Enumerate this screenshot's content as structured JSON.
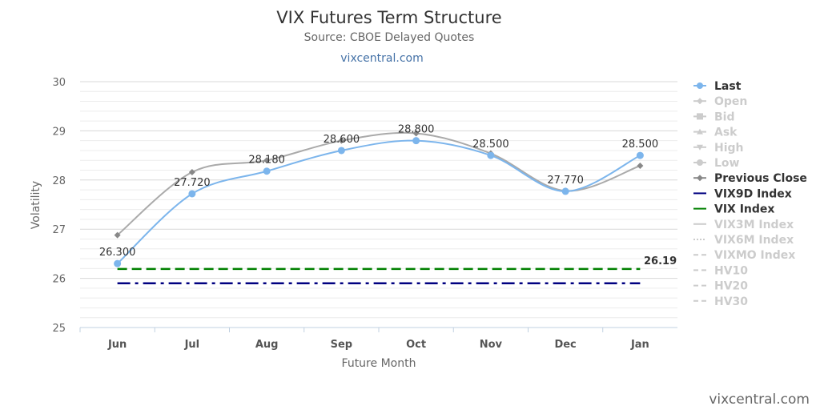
{
  "chart_data": {
    "type": "line",
    "title": "VIX Futures Term Structure",
    "subtitle": "Source: CBOE Delayed Quotes",
    "link": "vixcentral.com",
    "watermark": "vixcentral.com",
    "xlabel": "Future Month",
    "ylabel": "Volatility",
    "ylim": [
      25,
      30
    ],
    "yticks": [
      "25",
      "26",
      "27",
      "28",
      "29",
      "30"
    ],
    "categories": [
      "Jun",
      "Jul",
      "Aug",
      "Sep",
      "Oct",
      "Nov",
      "Dec",
      "Jan"
    ],
    "grid": true,
    "legend_position": "right",
    "series": [
      {
        "name": "Last",
        "color": "#7cb5ec",
        "values": [
          26.3,
          27.72,
          28.18,
          28.6,
          28.8,
          28.5,
          27.77,
          28.5
        ],
        "labels": [
          "26.300",
          "27.720",
          "28.180",
          "28.600",
          "28.800",
          "28.500",
          "27.770",
          "28.500"
        ]
      },
      {
        "name": "Previous Close",
        "color": "#aaaaaa",
        "values": [
          26.88,
          28.16,
          28.4,
          28.8,
          28.95,
          28.54,
          27.78,
          28.29
        ]
      }
    ],
    "reference_lines": [
      {
        "name": "VIX9D Index",
        "color": "#000080",
        "value": 25.9
      },
      {
        "name": "VIX Index",
        "color": "#008000",
        "value": 26.19,
        "label": "26.19"
      }
    ],
    "legend": [
      {
        "name": "Last",
        "color": "#333333",
        "active": true,
        "symbol": "circle"
      },
      {
        "name": "Open",
        "color": "#cccccc",
        "active": false,
        "symbol": "diamond"
      },
      {
        "name": "Bid",
        "color": "#cccccc",
        "active": false,
        "symbol": "square"
      },
      {
        "name": "Ask",
        "color": "#cccccc",
        "active": false,
        "symbol": "triangle"
      },
      {
        "name": "High",
        "color": "#cccccc",
        "active": false,
        "symbol": "triangle-down"
      },
      {
        "name": "Low",
        "color": "#cccccc",
        "active": false,
        "symbol": "circle"
      },
      {
        "name": "Previous Close",
        "color": "#333333",
        "active": true,
        "symbol": "diamond"
      },
      {
        "name": "VIX9D Index",
        "color": "#333333",
        "active": true,
        "symbol": "line"
      },
      {
        "name": "VIX Index",
        "color": "#333333",
        "active": true,
        "symbol": "line"
      },
      {
        "name": "VIX3M Index",
        "color": "#cccccc",
        "active": false,
        "symbol": "line"
      },
      {
        "name": "VIX6M Index",
        "color": "#cccccc",
        "active": false,
        "symbol": "dotted"
      },
      {
        "name": "VIXMO Index",
        "color": "#cccccc",
        "active": false,
        "symbol": "dashed"
      },
      {
        "name": "HV10",
        "color": "#cccccc",
        "active": false,
        "symbol": "dashed"
      },
      {
        "name": "HV20",
        "color": "#cccccc",
        "active": false,
        "symbol": "dashed"
      },
      {
        "name": "HV30",
        "color": "#cccccc",
        "active": false,
        "symbol": "dashed"
      }
    ]
  }
}
